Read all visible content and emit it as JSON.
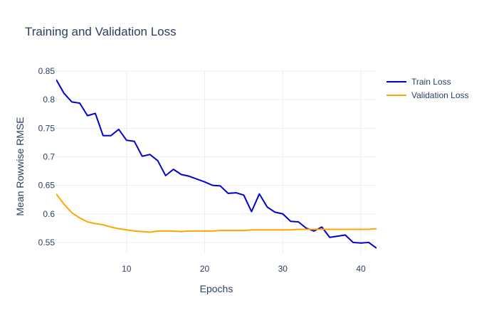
{
  "chart_data": {
    "type": "line",
    "title": "Training and Validation Loss",
    "xlabel": "Epochs",
    "ylabel": "Mean Rowwise RMSE",
    "xlim": [
      1,
      42
    ],
    "ylim": [
      0.53,
      0.85
    ],
    "xticks": [
      10,
      20,
      30,
      40
    ],
    "yticks": [
      0.55,
      0.6,
      0.65,
      0.7,
      0.75,
      0.8,
      0.85
    ],
    "grid": true,
    "legend_position": "top-right",
    "x": [
      1,
      2,
      3,
      4,
      5,
      6,
      7,
      8,
      9,
      10,
      11,
      12,
      13,
      14,
      15,
      16,
      17,
      18,
      19,
      20,
      21,
      22,
      23,
      24,
      25,
      26,
      27,
      28,
      29,
      30,
      31,
      32,
      33,
      34,
      35,
      36,
      37,
      38,
      39,
      40,
      41,
      42
    ],
    "series": [
      {
        "name": "Train Loss",
        "color": "#0000cd",
        "values": [
          0.835,
          0.811,
          0.796,
          0.794,
          0.772,
          0.776,
          0.737,
          0.737,
          0.748,
          0.729,
          0.727,
          0.701,
          0.704,
          0.693,
          0.667,
          0.678,
          0.669,
          0.666,
          0.661,
          0.656,
          0.65,
          0.649,
          0.636,
          0.637,
          0.633,
          0.604,
          0.635,
          0.612,
          0.603,
          0.6,
          0.587,
          0.586,
          0.575,
          0.57,
          0.577,
          0.559,
          0.561,
          0.563,
          0.55,
          0.549,
          0.55,
          0.54
        ]
      },
      {
        "name": "Validation Loss",
        "color": "#ffa500",
        "values": [
          0.635,
          0.617,
          0.602,
          0.593,
          0.586,
          0.583,
          0.581,
          0.577,
          0.574,
          0.572,
          0.57,
          0.569,
          0.568,
          0.57,
          0.57,
          0.57,
          0.569,
          0.57,
          0.57,
          0.57,
          0.57,
          0.571,
          0.571,
          0.571,
          0.571,
          0.572,
          0.572,
          0.572,
          0.572,
          0.572,
          0.572,
          0.573,
          0.573,
          0.573,
          0.573,
          0.573,
          0.573,
          0.573,
          0.573,
          0.573,
          0.573,
          0.574
        ]
      }
    ]
  }
}
